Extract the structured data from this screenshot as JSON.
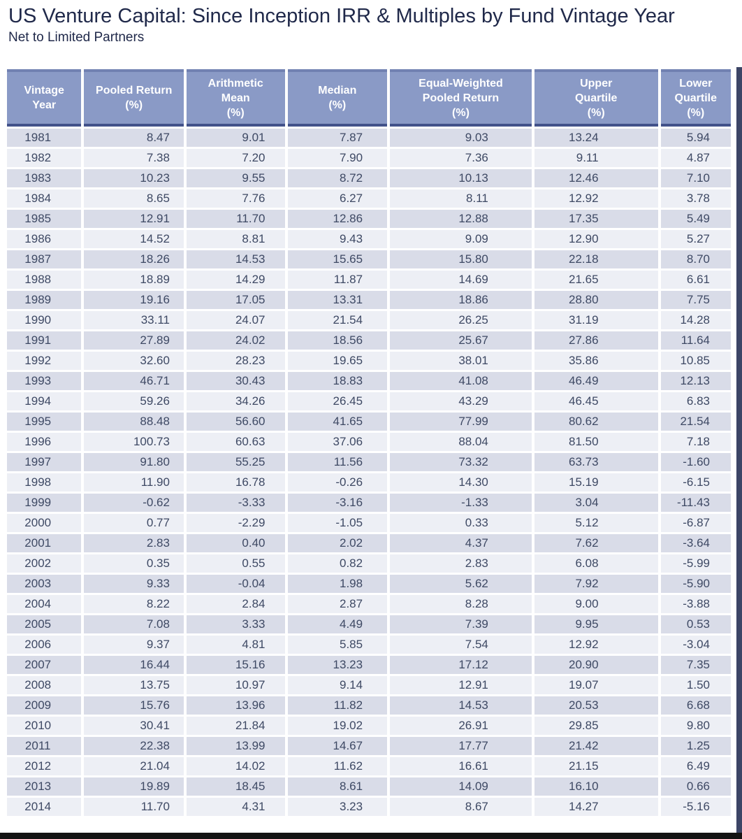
{
  "header": {
    "title": "US Venture Capital: Since Inception IRR & Multiples by Fund Vintage Year",
    "subtitle": "Net to Limited Partners"
  },
  "colors": {
    "header_fill": "#8a9ac6",
    "header_text": "#ffffff",
    "header_border_top": "#7181b1",
    "header_border_bottom": "#42528a",
    "row_dark": "#d9dce8",
    "row_light": "#edeff5",
    "cell_text": "#3e4964",
    "title_text": "#20294a",
    "right_bar": "#3c4566",
    "bottom_bar": "#131313"
  },
  "chart_data": {
    "type": "table",
    "title": "US Venture Capital: Since Inception IRR & Multiples by Fund Vintage Year",
    "subtitle": "Net to Limited Partners",
    "columns": [
      "Vintage Year",
      "Pooled Return (%)",
      "Arithmetic Mean (%)",
      "Median (%)",
      "Equal-Weighted Pooled Return (%)",
      "Upper Quartile (%)",
      "Lower Quartile (%)"
    ],
    "column_header_lines": [
      [
        "Vintage",
        "Year"
      ],
      [
        "Pooled Return",
        "(%)"
      ],
      [
        "Arithmetic",
        "Mean",
        "(%)"
      ],
      [
        "Median",
        "(%)"
      ],
      [
        "Equal-Weighted",
        "Pooled Return",
        "(%)"
      ],
      [
        "Upper",
        "Quartile",
        "(%)"
      ],
      [
        "Lower",
        "Quartile",
        "(%)"
      ]
    ],
    "rows": [
      [
        "1981",
        "8.47",
        "9.01",
        "7.87",
        "9.03",
        "13.24",
        "5.94"
      ],
      [
        "1982",
        "7.38",
        "7.20",
        "7.90",
        "7.36",
        "9.11",
        "4.87"
      ],
      [
        "1983",
        "10.23",
        "9.55",
        "8.72",
        "10.13",
        "12.46",
        "7.10"
      ],
      [
        "1984",
        "8.65",
        "7.76",
        "6.27",
        "8.11",
        "12.92",
        "3.78"
      ],
      [
        "1985",
        "12.91",
        "11.70",
        "12.86",
        "12.88",
        "17.35",
        "5.49"
      ],
      [
        "1986",
        "14.52",
        "8.81",
        "9.43",
        "9.09",
        "12.90",
        "5.27"
      ],
      [
        "1987",
        "18.26",
        "14.53",
        "15.65",
        "15.80",
        "22.18",
        "8.70"
      ],
      [
        "1988",
        "18.89",
        "14.29",
        "11.87",
        "14.69",
        "21.65",
        "6.61"
      ],
      [
        "1989",
        "19.16",
        "17.05",
        "13.31",
        "18.86",
        "28.80",
        "7.75"
      ],
      [
        "1990",
        "33.11",
        "24.07",
        "21.54",
        "26.25",
        "31.19",
        "14.28"
      ],
      [
        "1991",
        "27.89",
        "24.02",
        "18.56",
        "25.67",
        "27.86",
        "11.64"
      ],
      [
        "1992",
        "32.60",
        "28.23",
        "19.65",
        "38.01",
        "35.86",
        "10.85"
      ],
      [
        "1993",
        "46.71",
        "30.43",
        "18.83",
        "41.08",
        "46.49",
        "12.13"
      ],
      [
        "1994",
        "59.26",
        "34.26",
        "26.45",
        "43.29",
        "46.45",
        "6.83"
      ],
      [
        "1995",
        "88.48",
        "56.60",
        "41.65",
        "77.99",
        "80.62",
        "21.54"
      ],
      [
        "1996",
        "100.73",
        "60.63",
        "37.06",
        "88.04",
        "81.50",
        "7.18"
      ],
      [
        "1997",
        "91.80",
        "55.25",
        "11.56",
        "73.32",
        "63.73",
        "-1.60"
      ],
      [
        "1998",
        "11.90",
        "16.78",
        "-0.26",
        "14.30",
        "15.19",
        "-6.15"
      ],
      [
        "1999",
        "-0.62",
        "-3.33",
        "-3.16",
        "-1.33",
        "3.04",
        "-11.43"
      ],
      [
        "2000",
        "0.77",
        "-2.29",
        "-1.05",
        "0.33",
        "5.12",
        "-6.87"
      ],
      [
        "2001",
        "2.83",
        "0.40",
        "2.02",
        "4.37",
        "7.62",
        "-3.64"
      ],
      [
        "2002",
        "0.35",
        "0.55",
        "0.82",
        "2.83",
        "6.08",
        "-5.99"
      ],
      [
        "2003",
        "9.33",
        "-0.04",
        "1.98",
        "5.62",
        "7.92",
        "-5.90"
      ],
      [
        "2004",
        "8.22",
        "2.84",
        "2.87",
        "8.28",
        "9.00",
        "-3.88"
      ],
      [
        "2005",
        "7.08",
        "3.33",
        "4.49",
        "7.39",
        "9.95",
        "0.53"
      ],
      [
        "2006",
        "9.37",
        "4.81",
        "5.85",
        "7.54",
        "12.92",
        "-3.04"
      ],
      [
        "2007",
        "16.44",
        "15.16",
        "13.23",
        "17.12",
        "20.90",
        "7.35"
      ],
      [
        "2008",
        "13.75",
        "10.97",
        "9.14",
        "12.91",
        "19.07",
        "1.50"
      ],
      [
        "2009",
        "15.76",
        "13.96",
        "11.82",
        "14.53",
        "20.53",
        "6.68"
      ],
      [
        "2010",
        "30.41",
        "21.84",
        "19.02",
        "26.91",
        "29.85",
        "9.80"
      ],
      [
        "2011",
        "22.38",
        "13.99",
        "14.67",
        "17.77",
        "21.42",
        "1.25"
      ],
      [
        "2012",
        "21.04",
        "14.02",
        "11.62",
        "16.61",
        "21.15",
        "6.49"
      ],
      [
        "2013",
        "19.89",
        "18.45",
        "8.61",
        "14.09",
        "16.10",
        "0.66"
      ],
      [
        "2014",
        "11.70",
        "4.31",
        "3.23",
        "8.67",
        "14.27",
        "-5.16"
      ]
    ]
  }
}
